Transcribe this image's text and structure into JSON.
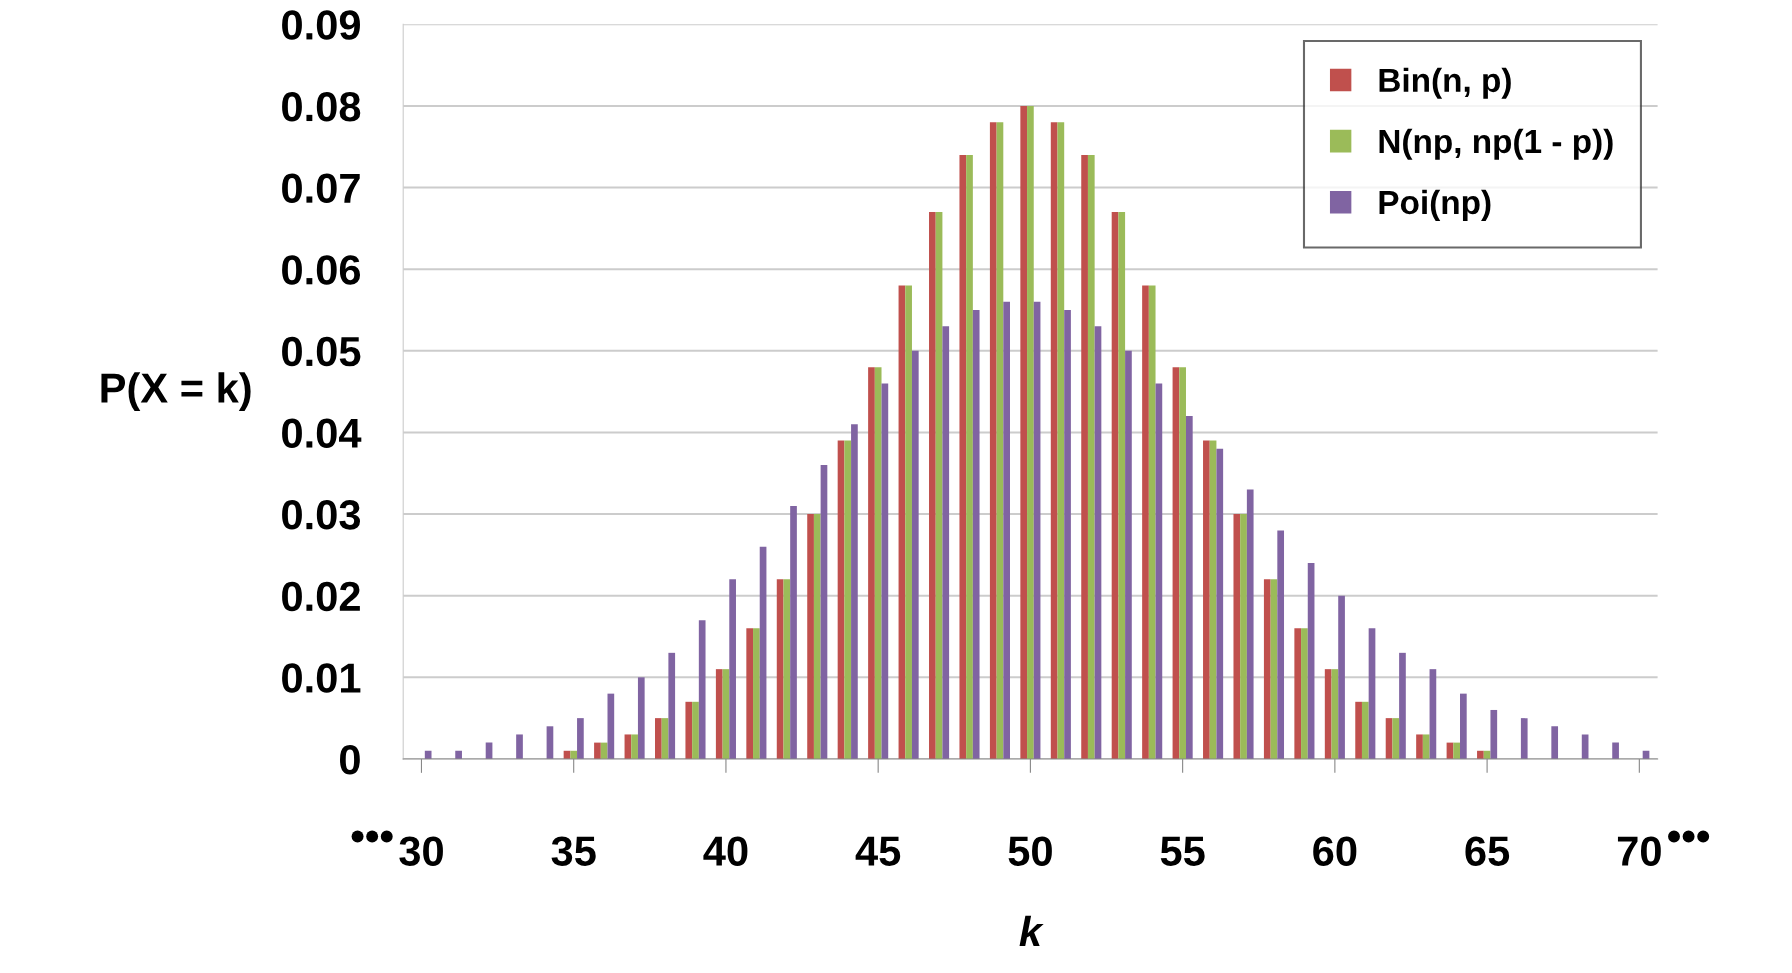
{
  "chart_data": {
    "type": "bar",
    "xlabel": "k",
    "ylabel": "P(X = k)",
    "categories": [
      "30",
      null,
      null,
      null,
      null,
      "35",
      null,
      null,
      null,
      null,
      "40",
      null,
      null,
      null,
      null,
      "45",
      null,
      null,
      null,
      null,
      "50",
      null,
      null,
      null,
      null,
      "55",
      null,
      null,
      null,
      null,
      "60",
      null,
      null,
      null,
      null,
      "65",
      null,
      null,
      null,
      null,
      "70"
    ],
    "series": [
      {
        "name": "Bin(n, p)",
        "color": "#c0504d",
        "values": [
          0.0,
          0.0,
          0.0,
          0.0,
          0.0,
          0.001,
          0.002,
          0.003,
          0.005,
          0.007,
          0.011,
          0.016,
          0.022,
          0.03,
          0.039,
          0.048,
          0.058,
          0.067,
          0.074,
          0.078,
          0.08,
          0.078,
          0.074,
          0.067,
          0.058,
          0.048,
          0.039,
          0.03,
          0.022,
          0.016,
          0.011,
          0.007,
          0.005,
          0.003,
          0.002,
          0.001,
          0.0,
          0.0,
          0.0,
          0.0,
          0.0
        ]
      },
      {
        "name": "N(np, np(1 - p))",
        "color": "#9bbb59",
        "values": [
          0.0,
          0.0,
          0.0,
          0.0,
          0.0,
          0.001,
          0.002,
          0.003,
          0.005,
          0.007,
          0.011,
          0.016,
          0.022,
          0.03,
          0.039,
          0.048,
          0.058,
          0.067,
          0.074,
          0.078,
          0.08,
          0.078,
          0.074,
          0.067,
          0.058,
          0.048,
          0.039,
          0.03,
          0.022,
          0.016,
          0.011,
          0.007,
          0.005,
          0.003,
          0.002,
          0.001,
          0.0,
          0.0,
          0.0,
          0.0,
          0.0
        ]
      },
      {
        "name": "Poi(np)",
        "color": "#8064a2",
        "values": [
          0.001,
          0.001,
          0.002,
          0.003,
          0.004,
          0.005,
          0.008,
          0.01,
          0.013,
          0.017,
          0.022,
          0.026,
          0.031,
          0.036,
          0.041,
          0.046,
          0.05,
          0.053,
          0.055,
          0.056,
          0.056,
          0.055,
          0.053,
          0.05,
          0.046,
          0.042,
          0.038,
          0.033,
          0.028,
          0.024,
          0.02,
          0.016,
          0.013,
          0.011,
          0.008,
          0.006,
          0.005,
          0.004,
          0.003,
          0.002,
          0.001
        ]
      }
    ],
    "ylim": [
      0,
      0.09
    ],
    "yticks": [
      0,
      0.01,
      0.02,
      0.03,
      0.04,
      0.05,
      0.06,
      0.07,
      0.08,
      0.09
    ],
    "grid": "y",
    "legend": "top right",
    "annotations": [
      "•••",
      "•••"
    ]
  }
}
